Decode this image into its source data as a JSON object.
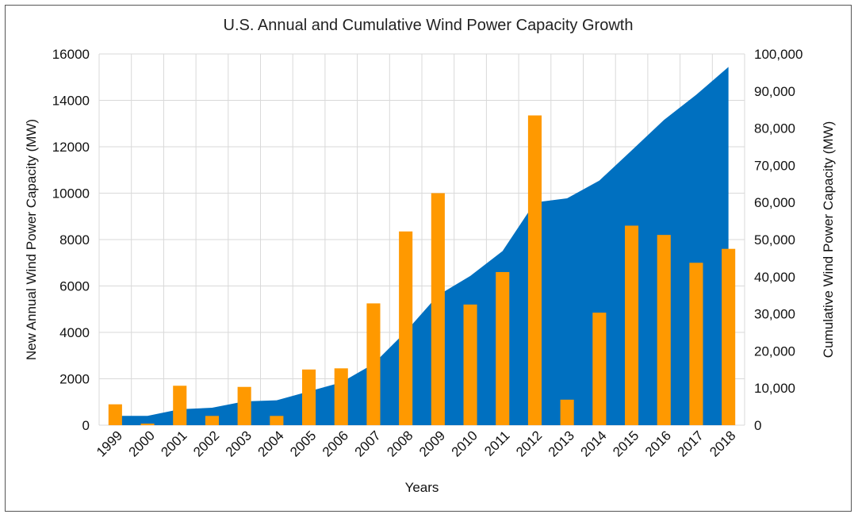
{
  "chart_data": {
    "type": "bar+area",
    "title": "U.S. Annual and Cumulative Wind Power Capacity Growth",
    "xlabel": "Years",
    "ylabel_left": "New Annual Wind Power Capacity (MW)",
    "ylabel_right": "Cumulative Wind Power Capacity (MW)",
    "categories": [
      "1999",
      "2000",
      "2001",
      "2002",
      "2003",
      "2004",
      "2005",
      "2006",
      "2007",
      "2008",
      "2009",
      "2010",
      "2011",
      "2012",
      "2013",
      "2014",
      "2015",
      "2016",
      "2017",
      "2018"
    ],
    "ylim_left": [
      0,
      16000
    ],
    "ylim_right": [
      0,
      100000
    ],
    "left_ticks": [
      "0",
      "2000",
      "4000",
      "6000",
      "8000",
      "10000",
      "12000",
      "14000",
      "16000"
    ],
    "right_ticks": [
      "0",
      "10,000",
      "20,000",
      "30,000",
      "40,000",
      "50,000",
      "60,000",
      "70,000",
      "80,000",
      "90,000",
      "100,000"
    ],
    "grid": true,
    "colors": {
      "bar": "#ff9900",
      "area": "#0070c0",
      "grid": "#d9d9d9"
    },
    "series": [
      {
        "kind": "area",
        "axis": "right",
        "values": [
          2500,
          2500,
          4300,
          4700,
          6400,
          6700,
          9100,
          11500,
          16500,
          25200,
          35000,
          40200,
          46900,
          60000,
          61100,
          65900,
          74000,
          82200,
          89000,
          96500
        ]
      },
      {
        "kind": "bar",
        "axis": "left",
        "values": [
          900,
          70,
          1700,
          400,
          1650,
          400,
          2400,
          2450,
          5250,
          8350,
          10000,
          5200,
          6600,
          13350,
          1100,
          4850,
          8600,
          8200,
          7000,
          7600
        ]
      }
    ]
  }
}
